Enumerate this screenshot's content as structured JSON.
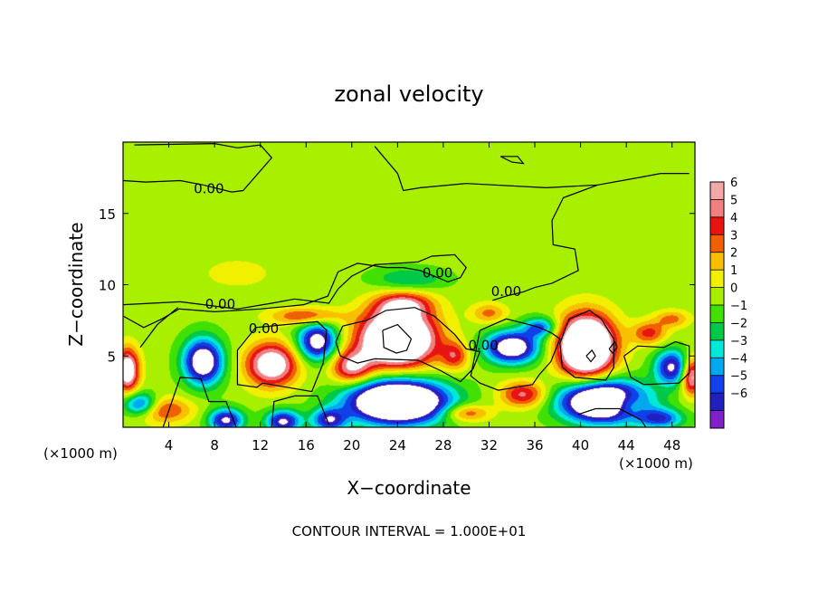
{
  "chart_data": {
    "type": "heatmap",
    "title": "zonal velocity",
    "xlabel": "X−coordinate",
    "ylabel": "Z−coordinate",
    "x_unit_left": "(×1000 m)",
    "x_unit_right": "(×1000 m)",
    "xlim": [
      0,
      50
    ],
    "ylim": [
      0,
      20
    ],
    "x_ticks": [
      4,
      8,
      12,
      16,
      20,
      24,
      28,
      32,
      36,
      40,
      44,
      48
    ],
    "y_ticks": [
      5,
      10,
      15
    ],
    "contour_interval_text": "CONTOUR INTERVAL = 1.000E+01",
    "contour_labels": [
      {
        "text": "0.00",
        "x": 7.5,
        "y": 16.7
      },
      {
        "text": "0.00",
        "x": 27.5,
        "y": 10.8
      },
      {
        "text": "0.00",
        "x": 33.5,
        "y": 9.5
      },
      {
        "text": "0.00",
        "x": 8.5,
        "y": 8.6
      },
      {
        "text": "0.00",
        "x": 12.3,
        "y": 6.9
      },
      {
        "text": "0.00",
        "x": 31.5,
        "y": 5.7
      }
    ],
    "colorbar": {
      "ticks": [
        "6",
        "5",
        "4",
        "3",
        "2",
        "1",
        "0",
        "−1",
        "−2",
        "−3",
        "−4",
        "−5",
        "−6"
      ],
      "colors": [
        "#f4a8a8",
        "#f08080",
        "#e81414",
        "#f06000",
        "#f8c000",
        "#f0f000",
        "#a8f000",
        "#40e000",
        "#00c848",
        "#00e8d8",
        "#00a8f0",
        "#1040e8",
        "#2020c0",
        "#8020c8"
      ]
    },
    "field": {
      "background": 0.4,
      "blobs": [
        {
          "x": 24,
          "y": 6.2,
          "v": 13,
          "rx": 3.2,
          "ry": 1.9
        },
        {
          "x": 40.5,
          "y": 5.7,
          "v": 13,
          "rx": 2.4,
          "ry": 2.1
        },
        {
          "x": 24.5,
          "y": 8.6,
          "v": 5,
          "rx": 2.5,
          "ry": 0.9
        },
        {
          "x": 13,
          "y": 4.4,
          "v": 8,
          "rx": 2.2,
          "ry": 1.5
        },
        {
          "x": 0.4,
          "y": 4.0,
          "v": 8,
          "rx": 1.0,
          "ry": 1.5
        },
        {
          "x": 20,
          "y": 4.2,
          "v": 6,
          "rx": 1.8,
          "ry": 1.2
        },
        {
          "x": 49.7,
          "y": 3.6,
          "v": 7,
          "rx": 0.9,
          "ry": 1.3
        },
        {
          "x": 35,
          "y": 2.3,
          "v": 5,
          "rx": 2.0,
          "ry": 0.9
        },
        {
          "x": 29,
          "y": 5.0,
          "v": 4,
          "rx": 1.2,
          "ry": 1.0
        },
        {
          "x": 46,
          "y": 6.6,
          "v": 4,
          "rx": 1.5,
          "ry": 0.8
        },
        {
          "x": 3.5,
          "y": 1.2,
          "v": 4,
          "rx": 2.5,
          "ry": 0.9
        },
        {
          "x": 16,
          "y": 7.8,
          "v": 4,
          "rx": 3.0,
          "ry": 0.6
        },
        {
          "x": 32,
          "y": 8.0,
          "v": 3,
          "rx": 1.5,
          "ry": 0.7
        },
        {
          "x": 48,
          "y": 7.6,
          "v": 3,
          "rx": 1.5,
          "ry": 0.6
        },
        {
          "x": 30,
          "y": 1.0,
          "v": 4,
          "rx": 2.0,
          "ry": 0.6
        },
        {
          "x": 44,
          "y": 1.6,
          "v": 4,
          "rx": 1.5,
          "ry": 0.8
        },
        {
          "x": 24,
          "y": 1.8,
          "v": -14,
          "rx": 4.2,
          "ry": 1.5
        },
        {
          "x": 42,
          "y": 1.8,
          "v": -13,
          "rx": 3.6,
          "ry": 1.4
        },
        {
          "x": 7,
          "y": 4.6,
          "v": -9,
          "rx": 1.7,
          "ry": 1.6
        },
        {
          "x": 17,
          "y": 6.0,
          "v": -8,
          "rx": 1.7,
          "ry": 1.3
        },
        {
          "x": 34,
          "y": 5.6,
          "v": -9,
          "rx": 2.3,
          "ry": 1.1
        },
        {
          "x": 48,
          "y": 4.2,
          "v": -7,
          "rx": 1.5,
          "ry": 1.2
        },
        {
          "x": 36.5,
          "y": 7.0,
          "v": -5,
          "rx": 1.5,
          "ry": 0.7
        },
        {
          "x": 1.5,
          "y": 1.6,
          "v": -6,
          "rx": 1.5,
          "ry": 0.8
        },
        {
          "x": 9,
          "y": 0.5,
          "v": -7,
          "rx": 1.5,
          "ry": 0.8
        },
        {
          "x": 14,
          "y": 0.4,
          "v": -7,
          "rx": 1.5,
          "ry": 0.8
        },
        {
          "x": 18,
          "y": 0.5,
          "v": -6,
          "rx": 1.5,
          "ry": 0.8
        },
        {
          "x": 47,
          "y": 0.6,
          "v": -5,
          "rx": 2.0,
          "ry": 0.7
        },
        {
          "x": 25,
          "y": 10.4,
          "v": -2.5,
          "rx": 3.2,
          "ry": 0.8
        },
        {
          "x": 10,
          "y": 10.8,
          "v": 1.0,
          "rx": 3.5,
          "ry": 1.2
        },
        {
          "x": 30,
          "y": 18.0,
          "v": -0.3,
          "rx": 10.0,
          "ry": 2.0
        }
      ]
    },
    "contours": [
      [
        [
          1,
          19.8
        ],
        [
          8,
          19.9
        ],
        [
          10,
          19.6
        ],
        [
          12,
          19.8
        ],
        [
          13,
          18.9
        ],
        [
          10.5,
          16.6
        ],
        [
          9.5,
          16.5
        ],
        [
          7,
          17.0
        ],
        [
          5,
          17.3
        ],
        [
          2,
          17.2
        ],
        [
          0,
          17.3
        ]
      ],
      [
        [
          22,
          19.7
        ],
        [
          24,
          17.8
        ],
        [
          24.5,
          16.6
        ],
        [
          26,
          16.8
        ],
        [
          30,
          17.1
        ],
        [
          37,
          16.8
        ],
        [
          41.5,
          17.0
        ],
        [
          45,
          17.5
        ],
        [
          47,
          17.8
        ],
        [
          49.5,
          17.8
        ]
      ],
      [
        [
          41.5,
          17.0
        ],
        [
          38.5,
          16.1
        ],
        [
          37.5,
          14.5
        ],
        [
          37.6,
          12.8
        ],
        [
          39.5,
          12.5
        ],
        [
          39.8,
          11.0
        ],
        [
          37.5,
          10.1
        ],
        [
          36,
          9.8
        ],
        [
          35,
          9.5
        ],
        [
          33.5,
          9.2
        ],
        [
          32.3,
          8.9
        ]
      ],
      [
        [
          0,
          8.6
        ],
        [
          5,
          8.8
        ],
        [
          10,
          8.3
        ],
        [
          13,
          8.7
        ],
        [
          15,
          9.0
        ],
        [
          18,
          8.7
        ],
        [
          18.8,
          9.7
        ],
        [
          20,
          10.6
        ],
        [
          22,
          11.4
        ],
        [
          24,
          11.5
        ],
        [
          25.8,
          11.6
        ],
        [
          27,
          12.0
        ],
        [
          29,
          12.1
        ],
        [
          30,
          11.2
        ],
        [
          29.5,
          10.5
        ],
        [
          28.4,
          10.2
        ],
        [
          27.5,
          10.5
        ],
        [
          26,
          11.0
        ],
        [
          24.5,
          11.2
        ],
        [
          23,
          11.2
        ],
        [
          20.5,
          11.5
        ],
        [
          18.8,
          10.9
        ],
        [
          17.9,
          9.2
        ],
        [
          15.8,
          8.6
        ],
        [
          12,
          8.3
        ],
        [
          8,
          8.1
        ],
        [
          4.9,
          8.3
        ],
        [
          3.4,
          7.6
        ],
        [
          1.8,
          7.0
        ],
        [
          0,
          7.8
        ]
      ],
      [
        [
          1.5,
          5.6
        ],
        [
          3,
          7.2
        ],
        [
          4.8,
          8.4
        ]
      ],
      [
        [
          3.5,
          0
        ],
        [
          5,
          3.5
        ],
        [
          6.8,
          3.4
        ],
        [
          7.5,
          1.8
        ],
        [
          9,
          1.8
        ],
        [
          9.9,
          0
        ]
      ],
      [
        [
          13,
          0
        ],
        [
          13.2,
          1.8
        ],
        [
          15,
          2.2
        ],
        [
          17,
          2.2
        ],
        [
          18,
          0.2
        ]
      ],
      [
        [
          10,
          5.4
        ],
        [
          11.6,
          7.0
        ],
        [
          15.5,
          7.3
        ],
        [
          17,
          7.4
        ],
        [
          17.8,
          6.8
        ],
        [
          17.5,
          4.5
        ],
        [
          16.5,
          2.5
        ],
        [
          12.2,
          3.1
        ],
        [
          11.7,
          2.8
        ],
        [
          10,
          3.0
        ],
        [
          10,
          5.4
        ]
      ],
      [
        [
          19.2,
          7.1
        ],
        [
          21.3,
          7.5
        ],
        [
          23,
          8.2
        ],
        [
          25.5,
          8.4
        ],
        [
          27.2,
          7.8
        ],
        [
          29,
          6.5
        ],
        [
          30,
          5.5
        ],
        [
          31.2,
          5.3
        ],
        [
          30.6,
          4.1
        ],
        [
          29.5,
          3.2
        ],
        [
          27.7,
          4.0
        ],
        [
          25.8,
          4.7
        ],
        [
          22,
          4.8
        ],
        [
          20.5,
          4.5
        ],
        [
          19,
          5.0
        ],
        [
          18.6,
          6.0
        ],
        [
          19.2,
          7.1
        ]
      ],
      [
        [
          22.7,
          6.8
        ],
        [
          24,
          7.2
        ],
        [
          25.2,
          6.2
        ],
        [
          24.8,
          5.4
        ],
        [
          23.9,
          5.2
        ],
        [
          22.8,
          5.6
        ],
        [
          22.7,
          6.8
        ]
      ],
      [
        [
          31.2,
          6.8
        ],
        [
          33.5,
          7.6
        ],
        [
          35.5,
          7.2
        ],
        [
          36.4,
          7.0
        ],
        [
          37.5,
          6.6
        ],
        [
          38.2,
          6.2
        ],
        [
          37.4,
          4.6
        ],
        [
          36.4,
          3.7
        ],
        [
          35.8,
          3.0
        ],
        [
          32.8,
          2.6
        ],
        [
          31.2,
          3.1
        ],
        [
          30.4,
          3.6
        ],
        [
          31.2,
          6.8
        ]
      ],
      [
        [
          38.2,
          5.9
        ],
        [
          39,
          7.6
        ],
        [
          40.8,
          8.2
        ],
        [
          41.8,
          7.6
        ],
        [
          42.9,
          6.2
        ],
        [
          42.9,
          4.2
        ],
        [
          42.2,
          3.3
        ],
        [
          39.5,
          3.5
        ],
        [
          38.4,
          4.2
        ],
        [
          38.2,
          5.9
        ]
      ],
      [
        [
          43.8,
          5.0
        ],
        [
          45,
          5.7
        ],
        [
          47.3,
          5.6
        ],
        [
          48.3,
          6.0
        ],
        [
          49.5,
          5.7
        ],
        [
          49.5,
          3.8
        ],
        [
          48.6,
          3.1
        ],
        [
          45.5,
          3.0
        ],
        [
          44.4,
          3.5
        ],
        [
          43.8,
          5.0
        ]
      ],
      [
        [
          39.8,
          0.9
        ],
        [
          41.3,
          1.3
        ],
        [
          43.4,
          1.3
        ],
        [
          45.3,
          0.5
        ],
        [
          45.7,
          0
        ]
      ],
      [
        [
          33,
          19.0
        ],
        [
          34,
          18.6
        ],
        [
          35,
          18.5
        ],
        [
          34.5,
          19.0
        ],
        [
          33,
          19.0
        ]
      ],
      [
        [
          42.5,
          5.5
        ],
        [
          43,
          6.0
        ],
        [
          43.2,
          5.6
        ],
        [
          42.8,
          5.2
        ],
        [
          42.5,
          5.5
        ]
      ],
      [
        [
          40.5,
          5.0
        ],
        [
          41,
          5.4
        ],
        [
          41.3,
          5.0
        ],
        [
          40.9,
          4.6
        ],
        [
          40.5,
          5.0
        ]
      ]
    ]
  }
}
